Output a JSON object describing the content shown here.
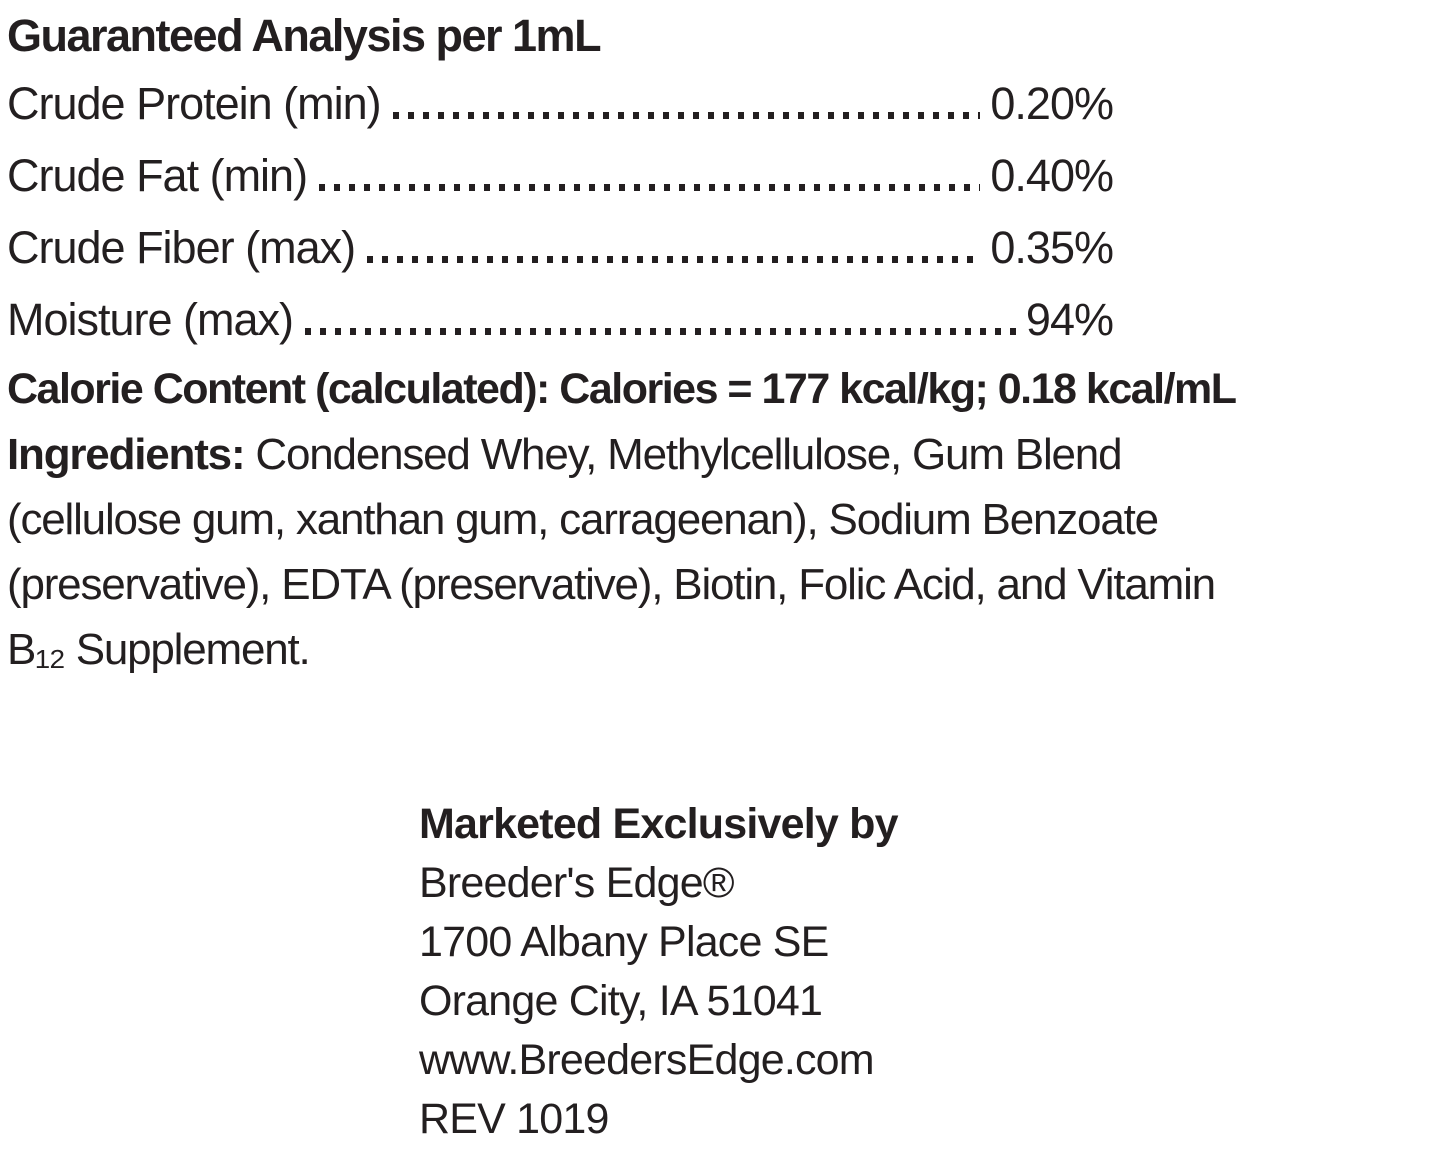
{
  "colors": {
    "background": "#ffffff",
    "text": "#231f20"
  },
  "guaranteed_analysis": {
    "heading": "Guaranteed Analysis per 1mL",
    "rows": [
      {
        "label": "Crude Protein (min)",
        "value": "0.20%"
      },
      {
        "label": "Crude Fat (min)",
        "value": "0.40%"
      },
      {
        "label": "Crude Fiber (max)",
        "value": "0.35%"
      },
      {
        "label": "Moisture (max)",
        "value": "94%"
      }
    ],
    "calorie_content": "Calorie Content (calculated): Calories = 177 kcal/kg; 0.18 kcal/mL"
  },
  "ingredients": {
    "label": "Ingredients:",
    "line1_rest": " Condensed Whey, Methylcellulose, Gum Blend",
    "line2": "(cellulose gum, xanthan gum, carrageenan), Sodium Benzoate",
    "line3": "(preservative), EDTA (preservative), Biotin, Folic Acid, and Vitamin",
    "line4": "B₁₂ Supplement."
  },
  "marketing": {
    "heading": "Marketed Exclusively by",
    "brand": "Breeder's Edge®",
    "address_line1": "1700 Albany Place SE",
    "address_line2": "Orange City, IA 51041",
    "website": "www.BreedersEdge.com",
    "revision": "REV 1019"
  }
}
